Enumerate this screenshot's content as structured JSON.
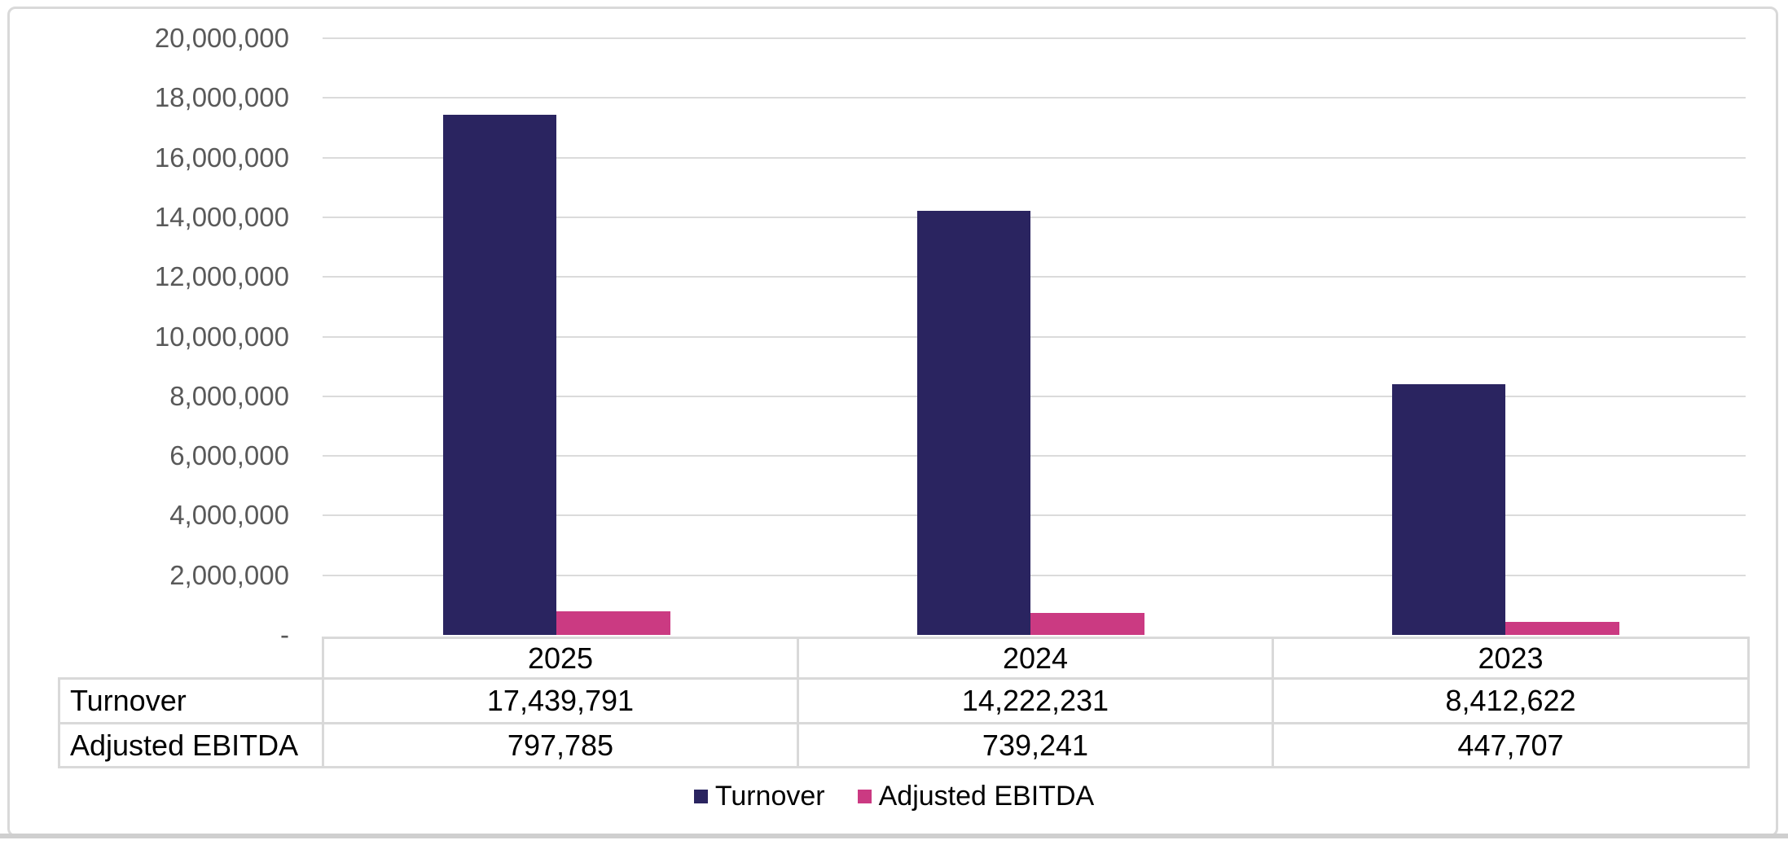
{
  "chart_data": {
    "type": "bar",
    "title": "",
    "xlabel": "",
    "ylabel": "",
    "categories": [
      "2025",
      "2024",
      "2023"
    ],
    "series": [
      {
        "name": "Turnover",
        "color": "#2A2460",
        "values": [
          17439791,
          14222231,
          8412622
        ]
      },
      {
        "name": "Adjusted EBITDA",
        "color": "#CB3A82",
        "values": [
          797785,
          739241,
          447707
        ]
      }
    ],
    "ylim": [
      0,
      20000000
    ],
    "ytick_interval": 2000000,
    "ytick_labels": [
      "-",
      "2,000,000",
      "4,000,000",
      "6,000,000",
      "8,000,000",
      "10,000,000",
      "12,000,000",
      "14,000,000",
      "16,000,000",
      "18,000,000",
      "20,000,000"
    ],
    "grid": true,
    "legend_position": "bottom"
  },
  "table": {
    "corner_label": "",
    "col_headers": [
      "2025",
      "2024",
      "2023"
    ],
    "rows": [
      {
        "label": "Turnover",
        "values": [
          "17,439,791",
          "14,222,231",
          "8,412,622"
        ]
      },
      {
        "label": "Adjusted EBITDA",
        "values": [
          "797,785",
          "739,241",
          "447,707"
        ]
      }
    ]
  },
  "legend": {
    "items": [
      {
        "label": "Turnover",
        "color": "#2A2460"
      },
      {
        "label": "Adjusted EBITDA",
        "color": "#CB3A82"
      }
    ]
  },
  "colors": {
    "bar_navy": "#2A2460",
    "bar_pink": "#CB3A82",
    "gridline": "#DBDBDB",
    "frame_border": "#D9D9D9",
    "table_border": "#D9D9D9",
    "axis_text": "#595959",
    "table_text": "#000000",
    "page_edge": "#CFCFCF",
    "background": "#FFFFFF"
  }
}
